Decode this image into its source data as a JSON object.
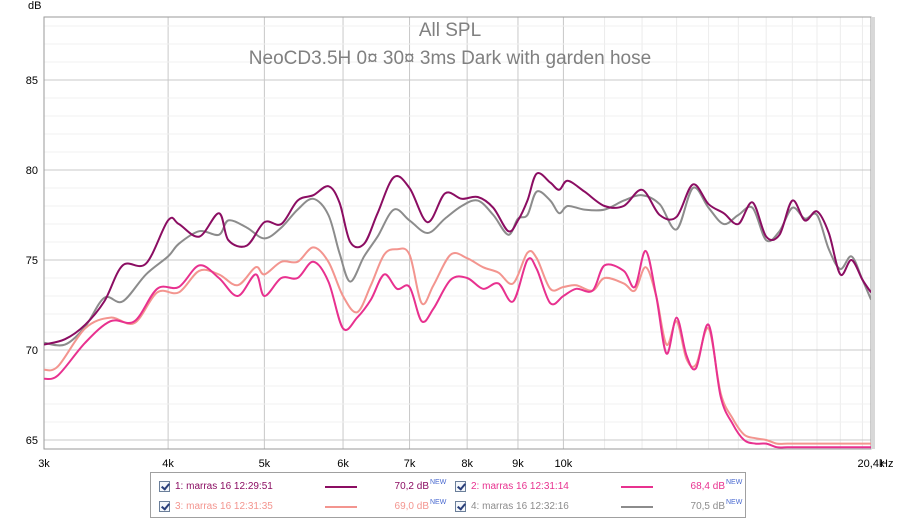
{
  "chart_data": {
    "type": "line",
    "title": "All SPL",
    "subtitle": "NeoCD3.5H 0¤ 30¤ 3ms Dark with garden hose",
    "ylabel": "dB",
    "xunit": "Hz",
    "xscale": "log",
    "xlim": [
      3000,
      20400
    ],
    "ylim": [
      64.5,
      88.5
    ],
    "yticks": [
      65,
      70,
      75,
      80,
      85
    ],
    "xticks": [
      {
        "value": 3000,
        "label": "3k"
      },
      {
        "value": 4000,
        "label": "4k"
      },
      {
        "value": 5000,
        "label": "5k"
      },
      {
        "value": 6000,
        "label": "6k"
      },
      {
        "value": 7000,
        "label": "7k"
      },
      {
        "value": 8000,
        "label": "8k"
      },
      {
        "value": 9000,
        "label": "9k"
      },
      {
        "value": 10000,
        "label": "10k"
      },
      {
        "value": 20400,
        "label": "20,4k"
      }
    ],
    "grid": true,
    "legend": "bottom",
    "series": [
      {
        "name": "1: marras 16 12:29:51",
        "value_label": "70,2 dB",
        "color": "#8b0d62",
        "x": [
          3000,
          3150,
          3300,
          3450,
          3600,
          3800,
          4000,
          4100,
          4300,
          4500,
          4600,
          4800,
          5000,
          5200,
          5400,
          5600,
          5800,
          5950,
          6100,
          6300,
          6500,
          6750,
          7000,
          7300,
          7600,
          7900,
          8200,
          8500,
          8800,
          9000,
          9200,
          9400,
          9700,
          9900,
          10100,
          10500,
          11000,
          11500,
          12000,
          12500,
          13000,
          13500,
          14000,
          14500,
          15000,
          15500,
          16000,
          16500,
          17000,
          17500,
          18000,
          18500,
          19000,
          19500,
          20000,
          20400
        ],
        "y": [
          70.3,
          70.6,
          71.4,
          72.7,
          74.7,
          74.8,
          77.2,
          77.0,
          76.3,
          77.6,
          76.1,
          75.8,
          77.1,
          77.0,
          78.3,
          78.6,
          79.1,
          78.2,
          76.0,
          75.9,
          77.6,
          79.6,
          79.0,
          77.1,
          78.7,
          78.4,
          78.5,
          77.9,
          76.6,
          77.2,
          78.3,
          79.8,
          79.3,
          78.9,
          79.4,
          78.8,
          78.0,
          78.0,
          78.9,
          77.5,
          77.4,
          79.2,
          78.1,
          77.6,
          77.0,
          78.2,
          76.3,
          76.4,
          78.3,
          77.2,
          77.7,
          76.5,
          74.2,
          75.0,
          73.9,
          73.2
        ]
      },
      {
        "name": "2: marras 16 12:31:14",
        "value_label": "68,4 dB",
        "color": "#e8318f",
        "x": [
          3000,
          3100,
          3300,
          3500,
          3700,
          3900,
          4100,
          4300,
          4500,
          4700,
          4900,
          5000,
          5200,
          5400,
          5600,
          5800,
          6000,
          6200,
          6400,
          6600,
          6800,
          7000,
          7200,
          7400,
          7700,
          8000,
          8300,
          8600,
          8900,
          9200,
          9400,
          9700,
          10000,
          10300,
          10700,
          11000,
          11500,
          11800,
          12100,
          12400,
          12700,
          13000,
          13300,
          13600,
          14000,
          14400,
          14800,
          15200,
          15600,
          16000,
          16400,
          16800,
          17200,
          17600,
          18000,
          18500,
          19000,
          19500,
          20000,
          20400
        ],
        "y": [
          68.4,
          68.6,
          70.4,
          71.6,
          71.6,
          73.4,
          73.5,
          74.7,
          74.0,
          73.0,
          74.2,
          73.0,
          74.0,
          74.0,
          74.9,
          73.8,
          71.2,
          71.8,
          72.8,
          74.2,
          73.4,
          73.5,
          71.6,
          72.3,
          73.9,
          74.0,
          73.4,
          73.7,
          72.7,
          75.0,
          74.5,
          72.6,
          73.0,
          73.4,
          73.3,
          74.7,
          74.4,
          73.5,
          75.5,
          73.0,
          69.8,
          71.8,
          69.7,
          69.0,
          71.4,
          67.4,
          65.9,
          65.0,
          64.8,
          64.8,
          64.6,
          64.6,
          64.6,
          64.6,
          64.6,
          64.6,
          64.6,
          64.6,
          64.6,
          64.6
        ]
      },
      {
        "name": "3: marras 16 12:31:35",
        "value_label": "69,0 dB",
        "color": "#f3958f",
        "x": [
          3000,
          3100,
          3300,
          3500,
          3700,
          3900,
          4100,
          4300,
          4500,
          4700,
          4900,
          5000,
          5200,
          5400,
          5600,
          5800,
          6000,
          6200,
          6400,
          6600,
          6800,
          7000,
          7200,
          7400,
          7700,
          8000,
          8300,
          8600,
          8900,
          9200,
          9400,
          9700,
          10000,
          10300,
          10700,
          11000,
          11500,
          11800,
          12100,
          12400,
          12700,
          13000,
          13300,
          13600,
          14000,
          14400,
          14800,
          15200,
          15600,
          16000,
          16400,
          16800,
          17200,
          17600,
          18000,
          18500,
          19000,
          19500,
          20000,
          20400
        ],
        "y": [
          68.9,
          69.1,
          71.2,
          71.8,
          71.5,
          73.2,
          73.2,
          74.4,
          74.2,
          73.6,
          74.6,
          74.2,
          74.9,
          74.9,
          75.7,
          74.9,
          73.0,
          72.1,
          73.6,
          75.3,
          75.6,
          75.3,
          72.6,
          73.6,
          75.3,
          75.1,
          74.6,
          74.3,
          73.7,
          75.4,
          75.1,
          73.4,
          73.5,
          73.6,
          73.3,
          74.0,
          73.7,
          73.3,
          74.6,
          73.0,
          70.3,
          71.6,
          69.5,
          69.2,
          71.2,
          67.6,
          66.2,
          65.3,
          65.1,
          65.0,
          64.8,
          64.8,
          64.8,
          64.8,
          64.8,
          64.8,
          64.8,
          64.8,
          64.8,
          64.8
        ]
      },
      {
        "name": "4: marras 16 12:32:16",
        "value_label": "70,5 dB",
        "color": "#8c8c8c",
        "x": [
          3000,
          3150,
          3300,
          3450,
          3600,
          3800,
          4000,
          4100,
          4300,
          4500,
          4600,
          4800,
          5000,
          5200,
          5400,
          5600,
          5800,
          5950,
          6100,
          6300,
          6500,
          6750,
          7000,
          7300,
          7600,
          7900,
          8200,
          8500,
          8800,
          9000,
          9200,
          9400,
          9700,
          9900,
          10100,
          10500,
          11000,
          11500,
          12000,
          12500,
          13000,
          13500,
          14000,
          14500,
          15000,
          15500,
          16000,
          16500,
          17000,
          17500,
          18000,
          18500,
          19000,
          19500,
          20000,
          20400
        ],
        "y": [
          70.4,
          70.3,
          71.3,
          72.9,
          72.7,
          74.2,
          75.2,
          75.9,
          76.6,
          76.4,
          77.2,
          76.8,
          76.2,
          76.8,
          77.8,
          78.4,
          77.5,
          75.4,
          73.8,
          75.2,
          76.3,
          77.8,
          77.2,
          76.5,
          77.3,
          78.0,
          78.3,
          77.5,
          76.4,
          77.3,
          77.5,
          78.8,
          78.3,
          77.6,
          78.0,
          77.8,
          77.8,
          78.3,
          78.6,
          78.1,
          76.7,
          79.0,
          77.9,
          77.0,
          77.5,
          77.9,
          76.1,
          76.6,
          77.9,
          77.3,
          77.5,
          75.6,
          74.5,
          75.2,
          73.9,
          72.8
        ]
      }
    ]
  },
  "legend_items": [
    {
      "label": "1: marras 16 12:29:51",
      "value": "70,2 dB",
      "new": "NEW",
      "color": "#8b0d62"
    },
    {
      "label": "2: marras 16 12:31:14",
      "value": "68,4 dB",
      "new": "NEW",
      "color": "#e8318f"
    },
    {
      "label": "3: marras 16 12:31:35",
      "value": "69,0 dB",
      "new": "NEW",
      "color": "#f3958f"
    },
    {
      "label": "4: marras 16 12:32:16",
      "value": "70,5 dB",
      "new": "NEW",
      "color": "#8c8c8c"
    }
  ]
}
